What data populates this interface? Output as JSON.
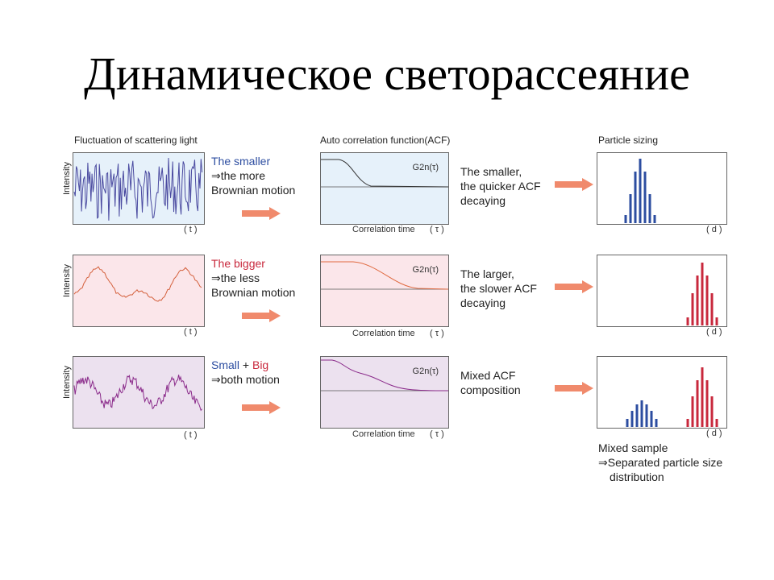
{
  "title": "Динамическое светорассеяние",
  "columns": {
    "signal": "Fluctuation of scattering light",
    "acf": "Auto correlation function(ACF)",
    "sizing": "Particle sizing"
  },
  "axes": {
    "intensity": "Intensity",
    "t": "( t )",
    "correlation_time": "Correlation time",
    "tau": "( τ )",
    "d": "( d )",
    "g2": "G2n(τ)"
  },
  "rows": [
    {
      "desc_line1": "The smaller",
      "desc_line2": "⇒the more",
      "desc_line3": "Brownian motion",
      "acf_line1": "The smaller,",
      "acf_line2": "the quicker ACF",
      "acf_line3": "decaying",
      "bg": "#e6f1fa",
      "line_color": "#4a4aa0",
      "desc_color": "#2c4da0",
      "bar_color": "#2c4da0"
    },
    {
      "desc_line1": "The bigger",
      "desc_line2": "⇒the less",
      "desc_line3": "Brownian motion",
      "acf_line1": "The larger,",
      "acf_line2": "the slower ACF",
      "acf_line3": "decaying",
      "bg": "#fbe6ea",
      "line_color": "#d4603c",
      "desc_color": "#c8283c",
      "bar_color": "#c8283c"
    },
    {
      "desc_small": "Small",
      "desc_plus": " + ",
      "desc_big": "Big",
      "desc_line2": "⇒both motion",
      "acf_line1": "Mixed ACF",
      "acf_line2": "composition",
      "bg": "#ece1ef",
      "line_color": "#8a2a8a"
    }
  ],
  "mixed_note": {
    "line1": "Mixed sample",
    "line2": "⇒Separated particle size",
    "line3": "distribution"
  },
  "colors": {
    "arrow": "#f08a6c",
    "blue": "#2c4da0",
    "red": "#c8283c"
  }
}
